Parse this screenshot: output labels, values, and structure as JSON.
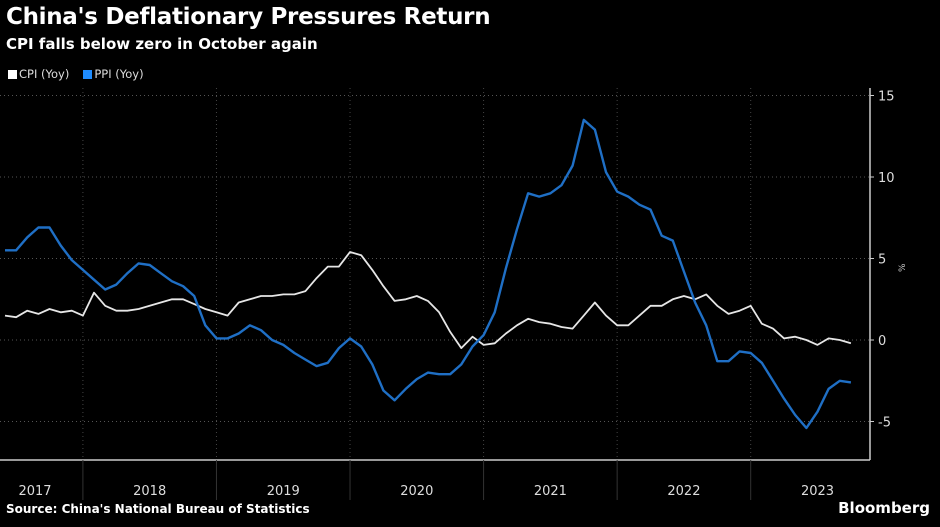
{
  "title": "China's Deflationary Pressures Return",
  "subtitle": "CPI falls below zero in October again",
  "source": "Source: China's National Bureau of Statistics",
  "brand": "Bloomberg",
  "chart_data": {
    "type": "line",
    "title": "China's Deflationary Pressures Return",
    "ylabel": "%",
    "ylim": [
      -7.5,
      15.5
    ],
    "yticks": [
      15,
      10,
      5,
      0,
      -5
    ],
    "x_start": "2017-06",
    "x_end": "2023-10",
    "frequency": "monthly",
    "year_labels": [
      "2017",
      "2018",
      "2019",
      "2020",
      "2021",
      "2022",
      "2023"
    ],
    "legend_position": "top-left",
    "series": [
      {
        "name": "CPI (Yoy)",
        "color": "#e6e6e6",
        "values": [
          1.5,
          1.4,
          1.8,
          1.6,
          1.9,
          1.7,
          1.8,
          1.5,
          2.9,
          2.1,
          1.8,
          1.8,
          1.9,
          2.1,
          2.3,
          2.5,
          2.5,
          2.2,
          1.9,
          1.7,
          1.5,
          2.3,
          2.5,
          2.7,
          2.7,
          2.8,
          2.8,
          3.0,
          3.8,
          4.5,
          4.5,
          5.4,
          5.2,
          4.3,
          3.3,
          2.4,
          2.5,
          2.7,
          2.4,
          1.7,
          0.5,
          -0.5,
          0.2,
          -0.3,
          -0.2,
          0.4,
          0.9,
          1.3,
          1.1,
          1.0,
          0.8,
          0.7,
          1.5,
          2.3,
          1.5,
          0.9,
          0.9,
          1.5,
          2.1,
          2.1,
          2.5,
          2.7,
          2.5,
          2.8,
          2.1,
          1.6,
          1.8,
          2.1,
          1.0,
          0.7,
          0.1,
          0.2,
          0.0,
          -0.3,
          0.1,
          0.0,
          -0.2
        ]
      },
      {
        "name": "PPI (Yoy)",
        "color": "#1f6fc5",
        "values": [
          5.5,
          5.5,
          6.3,
          6.9,
          6.9,
          5.8,
          4.9,
          4.3,
          3.7,
          3.1,
          3.4,
          4.1,
          4.7,
          4.6,
          4.1,
          3.6,
          3.3,
          2.7,
          0.9,
          0.1,
          0.1,
          0.4,
          0.9,
          0.6,
          0.0,
          -0.3,
          -0.8,
          -1.2,
          -1.6,
          -1.4,
          -0.5,
          0.1,
          -0.4,
          -1.5,
          -3.1,
          -3.7,
          -3.0,
          -2.4,
          -2.0,
          -2.1,
          -2.1,
          -1.5,
          -0.4,
          0.3,
          1.7,
          4.4,
          6.8,
          9.0,
          8.8,
          9.0,
          9.5,
          10.7,
          13.5,
          12.9,
          10.3,
          9.1,
          8.8,
          8.3,
          8.0,
          6.4,
          6.1,
          4.2,
          2.3,
          0.9,
          -1.3,
          -1.3,
          -0.7,
          -0.8,
          -1.4,
          -2.5,
          -3.6,
          -4.6,
          -5.4,
          -4.4,
          -3.0,
          -2.5,
          -2.6
        ]
      }
    ]
  }
}
